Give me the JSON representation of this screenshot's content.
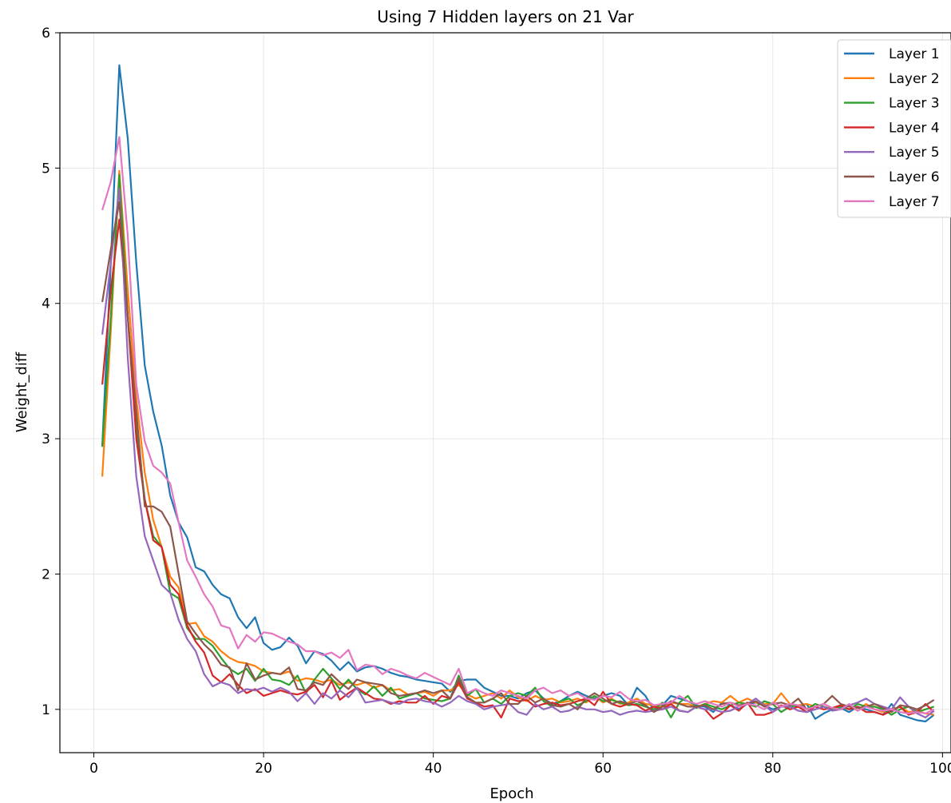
{
  "chart_data": {
    "type": "line",
    "title": "Using 7 Hidden layers on 21 Var",
    "xlabel": "Epoch",
    "ylabel": "Weight_diff",
    "xlim": [
      -4,
      101
    ],
    "ylim": [
      0.68,
      6.0
    ],
    "xticks": [
      0,
      20,
      40,
      60,
      80,
      100
    ],
    "yticks": [
      1,
      2,
      3,
      4,
      5,
      6
    ],
    "grid": true,
    "legend_position": "top-right",
    "x": [
      1,
      2,
      3,
      4,
      5,
      6,
      7,
      8,
      9,
      10,
      11,
      12,
      13,
      14,
      15,
      16,
      17,
      18,
      19,
      20,
      21,
      22,
      23,
      24,
      25,
      26,
      27,
      28,
      29,
      30,
      31,
      32,
      33,
      34,
      35,
      36,
      37,
      38,
      39,
      40,
      41,
      42,
      43,
      44,
      45,
      46,
      47,
      48,
      49,
      50,
      51,
      52,
      53,
      54,
      55,
      56,
      57,
      58,
      59,
      60,
      61,
      62,
      63,
      64,
      65,
      66,
      67,
      68,
      69,
      70,
      71,
      72,
      73,
      74,
      75,
      76,
      77,
      78,
      79,
      80,
      81,
      82,
      83,
      84,
      85,
      86,
      87,
      88,
      89,
      90,
      91,
      92,
      93,
      94,
      95,
      96,
      97,
      98,
      99
    ],
    "series": [
      {
        "name": "Layer 1",
        "color": "#1f77b4",
        "values": [
          2.95,
          4.3,
          5.76,
          5.22,
          4.3,
          3.54,
          3.2,
          2.95,
          2.58,
          2.38,
          2.27,
          2.05,
          2.02,
          1.92,
          1.85,
          1.82,
          1.68,
          1.6,
          1.68,
          1.49,
          1.44,
          1.46,
          1.53,
          1.47,
          1.34,
          1.43,
          1.41,
          1.36,
          1.29,
          1.35,
          1.28,
          1.31,
          1.32,
          1.3,
          1.27,
          1.25,
          1.24,
          1.22,
          1.21,
          1.2,
          1.19,
          1.13,
          1.21,
          1.22,
          1.22,
          1.16,
          1.13,
          1.1,
          1.1,
          1.08,
          1.12,
          1.14,
          1.08,
          1.04,
          1.06,
          1.1,
          1.13,
          1.1,
          1.08,
          1.1,
          1.12,
          1.1,
          1.03,
          1.16,
          1.1,
          0.99,
          1.03,
          1.1,
          1.08,
          1.06,
          1.03,
          1.02,
          0.98,
          1.05,
          1.03,
          1.0,
          1.04,
          1.05,
          1.03,
          1.0,
          1.02,
          1.04,
          1.02,
          1.04,
          0.93,
          0.97,
          1.0,
          1.01,
          0.98,
          1.02,
          1.0,
          0.98,
          0.96,
          1.04,
          0.96,
          0.94,
          0.92,
          0.91,
          0.96
        ]
      },
      {
        "name": "Layer 2",
        "color": "#ff7f0e",
        "values": [
          2.72,
          3.8,
          4.98,
          4.1,
          3.3,
          2.75,
          2.4,
          2.2,
          1.98,
          1.9,
          1.63,
          1.64,
          1.54,
          1.5,
          1.43,
          1.38,
          1.35,
          1.34,
          1.32,
          1.28,
          1.27,
          1.26,
          1.28,
          1.21,
          1.23,
          1.22,
          1.2,
          1.22,
          1.18,
          1.2,
          1.18,
          1.2,
          1.16,
          1.18,
          1.14,
          1.15,
          1.11,
          1.12,
          1.13,
          1.1,
          1.14,
          1.14,
          1.18,
          1.11,
          1.08,
          1.1,
          1.12,
          1.08,
          1.14,
          1.09,
          1.06,
          1.1,
          1.07,
          1.08,
          1.05,
          1.06,
          1.08,
          1.05,
          1.1,
          1.05,
          1.08,
          1.04,
          1.05,
          1.08,
          1.04,
          1.03,
          1.02,
          1.05,
          1.04,
          1.04,
          1.02,
          1.04,
          1.06,
          1.05,
          1.1,
          1.05,
          1.08,
          1.05,
          1.04,
          1.04,
          1.12,
          1.04,
          1.03,
          1.04,
          1.02,
          1.04,
          1.01,
          1.0,
          1.03,
          0.99,
          1.04,
          1.0,
          0.98,
          1.0,
          1.02,
          0.98,
          0.99,
          0.97,
          0.96
        ]
      },
      {
        "name": "Layer 3",
        "color": "#2ca02c",
        "values": [
          2.94,
          3.9,
          4.95,
          3.9,
          3.1,
          2.55,
          2.28,
          2.2,
          1.86,
          1.82,
          1.6,
          1.52,
          1.52,
          1.47,
          1.38,
          1.3,
          1.26,
          1.3,
          1.21,
          1.3,
          1.22,
          1.21,
          1.18,
          1.25,
          1.12,
          1.22,
          1.3,
          1.23,
          1.15,
          1.22,
          1.15,
          1.11,
          1.17,
          1.1,
          1.16,
          1.08,
          1.1,
          1.12,
          1.08,
          1.07,
          1.06,
          1.08,
          1.25,
          1.1,
          1.15,
          1.05,
          1.08,
          1.04,
          1.1,
          1.12,
          1.1,
          1.16,
          1.06,
          1.02,
          1.06,
          1.08,
          1.03,
          1.06,
          1.1,
          1.06,
          1.07,
          1.05,
          1.03,
          1.04,
          1.02,
          1.0,
          1.05,
          0.94,
          1.05,
          1.1,
          1.01,
          1.04,
          1.02,
          1.0,
          1.03,
          1.05,
          1.04,
          1.02,
          1.06,
          1.04,
          0.98,
          1.02,
          1.03,
          1.0,
          1.04,
          1.02,
          1.0,
          1.02,
          1.0,
          1.04,
          1.02,
          1.02,
          1.0,
          0.96,
          1.0,
          1.02,
          0.98,
          1.0,
          1.02
        ]
      },
      {
        "name": "Layer 4",
        "color": "#d62728",
        "values": [
          3.4,
          4.1,
          4.62,
          3.9,
          3.0,
          2.55,
          2.25,
          2.2,
          1.92,
          1.85,
          1.62,
          1.5,
          1.42,
          1.25,
          1.2,
          1.26,
          1.18,
          1.12,
          1.15,
          1.1,
          1.12,
          1.14,
          1.12,
          1.11,
          1.13,
          1.18,
          1.09,
          1.21,
          1.07,
          1.12,
          1.16,
          1.12,
          1.08,
          1.07,
          1.04,
          1.06,
          1.05,
          1.05,
          1.1,
          1.04,
          1.1,
          1.08,
          1.2,
          1.08,
          1.05,
          1.02,
          1.03,
          0.94,
          1.08,
          1.06,
          1.07,
          1.02,
          1.04,
          1.05,
          1.03,
          1.04,
          1.06,
          1.08,
          1.03,
          1.13,
          1.04,
          1.02,
          1.04,
          1.03,
          0.99,
          1.02,
          1.0,
          1.04,
          0.99,
          0.98,
          1.02,
          1.0,
          0.93,
          0.97,
          1.03,
          0.99,
          1.05,
          0.96,
          0.96,
          0.98,
          1.03,
          1.0,
          1.02,
          0.98,
          1.02,
          1.0,
          1.01,
          1.03,
          1.0,
          1.02,
          0.98,
          0.98,
          0.96,
          0.99,
          1.02,
          0.96,
          0.98,
          1.04,
          0.98
        ]
      },
      {
        "name": "Layer 5",
        "color": "#9467bd",
        "values": [
          3.77,
          4.3,
          4.85,
          3.6,
          2.72,
          2.28,
          2.1,
          1.92,
          1.86,
          1.66,
          1.52,
          1.43,
          1.26,
          1.17,
          1.2,
          1.18,
          1.12,
          1.15,
          1.14,
          1.16,
          1.13,
          1.16,
          1.13,
          1.06,
          1.12,
          1.04,
          1.12,
          1.08,
          1.14,
          1.09,
          1.16,
          1.05,
          1.06,
          1.07,
          1.05,
          1.04,
          1.07,
          1.08,
          1.06,
          1.05,
          1.02,
          1.05,
          1.1,
          1.06,
          1.04,
          1.0,
          1.02,
          1.03,
          1.04,
          0.98,
          0.96,
          1.04,
          1.0,
          1.02,
          0.98,
          0.99,
          1.02,
          1.0,
          1.0,
          0.98,
          0.99,
          0.96,
          0.98,
          0.99,
          0.98,
          0.99,
          1.0,
          1.02,
          0.99,
          0.98,
          1.02,
          1.0,
          1.0,
          0.98,
          0.99,
          1.02,
          1.04,
          1.08,
          1.03,
          0.98,
          1.02,
          1.02,
          0.99,
          0.98,
          1.0,
          1.02,
          0.99,
          1.0,
          1.03,
          1.05,
          1.08,
          1.04,
          1.02,
          1.0,
          1.09,
          1.02,
          0.97,
          0.94,
          0.99
        ]
      },
      {
        "name": "Layer 6",
        "color": "#8c564b",
        "values": [
          4.01,
          4.4,
          4.75,
          3.9,
          3.2,
          2.5,
          2.5,
          2.46,
          2.35,
          2.0,
          1.65,
          1.56,
          1.48,
          1.42,
          1.33,
          1.31,
          1.14,
          1.34,
          1.22,
          1.25,
          1.27,
          1.26,
          1.31,
          1.15,
          1.14,
          1.2,
          1.18,
          1.26,
          1.2,
          1.15,
          1.22,
          1.2,
          1.19,
          1.18,
          1.12,
          1.1,
          1.11,
          1.12,
          1.14,
          1.12,
          1.14,
          1.08,
          1.23,
          1.09,
          1.05,
          1.05,
          1.08,
          1.12,
          1.04,
          1.04,
          1.1,
          1.05,
          1.08,
          1.03,
          1.02,
          1.04,
          1.0,
          1.08,
          1.12,
          1.08,
          1.04,
          1.06,
          1.04,
          1.06,
          1.03,
          0.98,
          1.02,
          1.06,
          1.04,
          1.02,
          1.02,
          1.03,
          1.0,
          1.04,
          1.05,
          1.03,
          1.04,
          1.06,
          1.02,
          1.04,
          1.05,
          1.03,
          1.08,
          1.0,
          1.02,
          1.04,
          1.1,
          1.04,
          1.02,
          1.01,
          1.02,
          1.04,
          1.01,
          0.98,
          1.03,
          1.02,
          1.0,
          1.03,
          1.07
        ]
      },
      {
        "name": "Layer 7",
        "color": "#e377c2",
        "values": [
          4.69,
          4.9,
          5.23,
          4.5,
          3.4,
          2.98,
          2.8,
          2.75,
          2.67,
          2.38,
          2.1,
          1.98,
          1.85,
          1.76,
          1.62,
          1.6,
          1.45,
          1.55,
          1.5,
          1.57,
          1.56,
          1.53,
          1.5,
          1.48,
          1.43,
          1.43,
          1.4,
          1.42,
          1.38,
          1.44,
          1.29,
          1.33,
          1.32,
          1.26,
          1.3,
          1.28,
          1.25,
          1.23,
          1.27,
          1.24,
          1.21,
          1.18,
          1.3,
          1.12,
          1.15,
          1.12,
          1.1,
          1.14,
          1.12,
          1.1,
          1.08,
          1.14,
          1.16,
          1.12,
          1.14,
          1.1,
          1.12,
          1.08,
          1.07,
          1.1,
          1.09,
          1.13,
          1.08,
          1.06,
          1.07,
          1.03,
          1.04,
          1.05,
          1.1,
          1.06,
          1.04,
          1.06,
          1.04,
          1.02,
          1.05,
          1.02,
          1.04,
          1.03,
          1.0,
          1.05,
          1.02,
          1.04,
          1.03,
          1.0,
          1.02,
          1.04,
          1.01,
          1.0,
          1.04,
          0.99,
          1.02,
          1.0,
          0.99,
          1.0,
          0.98,
          0.97,
          0.98,
          0.97,
          1.0
        ]
      }
    ]
  }
}
